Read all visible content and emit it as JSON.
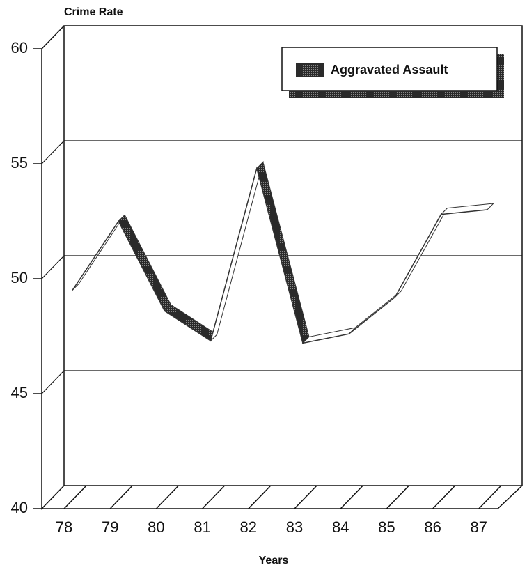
{
  "chart_data": {
    "type": "line",
    "ylabel": "Crime Rate",
    "xlabel": "Years",
    "categories": [
      "78",
      "79",
      "80",
      "81",
      "82",
      "83",
      "84",
      "85",
      "86",
      "87"
    ],
    "series": [
      {
        "name": "Aggravated Assault",
        "color": "#333333",
        "values": [
          49.5,
          52.5,
          48.6,
          47.3,
          54.8,
          47.2,
          47.6,
          49.2,
          52.8,
          53.0
        ]
      }
    ],
    "ylim": [
      40,
      60
    ],
    "yticks": [
      40,
      45,
      50,
      55,
      60
    ],
    "grid": true,
    "legend": "upper right"
  }
}
